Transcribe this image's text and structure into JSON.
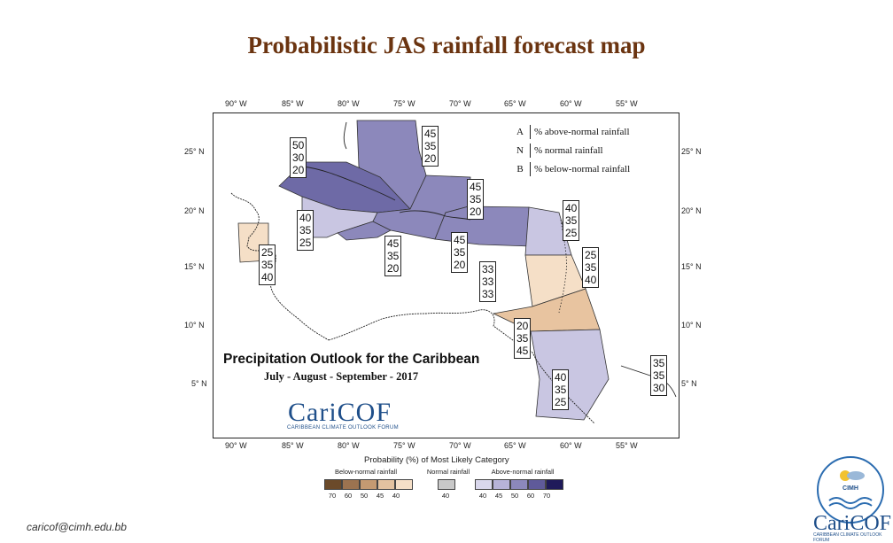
{
  "title": "Probabilistic JAS rainfall forecast map",
  "map": {
    "lon_labels": [
      "90° W",
      "85° W",
      "80° W",
      "75° W",
      "70° W",
      "65° W",
      "60° W",
      "55° W"
    ],
    "lat_labels": [
      "25° N",
      "20° N",
      "15° N",
      "10° N",
      "5° N"
    ],
    "outlook_title": "Precipitation Outlook for the Caribbean",
    "months": "July - August - September - 2017",
    "logo_text": "CariCOF",
    "logo_subtitle": "CARIBBEAN CLIMATE OUTLOOK FORUM",
    "legend": {
      "rows": [
        {
          "key": "A",
          "text": "% above-normal rainfall"
        },
        {
          "key": "N",
          "text": "% normal rainfall"
        },
        {
          "key": "B",
          "text": "% below-normal rainfall"
        }
      ]
    },
    "regions": [
      {
        "name": "Bahamas",
        "A": "45",
        "N": "35",
        "B": "20",
        "color": "#8c88bb"
      },
      {
        "name": "Cuba",
        "A": "50",
        "N": "30",
        "B": "20",
        "color": "#6e6aa6"
      },
      {
        "name": "Cayman / Jamaica west",
        "A": "40",
        "N": "35",
        "B": "25",
        "color": "#c9c6e2"
      },
      {
        "name": "Jamaica",
        "A": "45",
        "N": "35",
        "B": "20",
        "color": "#8c88bb"
      },
      {
        "name": "Hispaniola",
        "A": "45",
        "N": "35",
        "B": "20",
        "color": "#8c88bb"
      },
      {
        "name": "Turks and Caicos",
        "A": "45",
        "N": "35",
        "B": "20",
        "color": "#8c88bb"
      },
      {
        "name": "Northern Leewards",
        "A": "40",
        "N": "35",
        "B": "25",
        "color": "#c9c6e2"
      },
      {
        "name": "Windwards",
        "A": "25",
        "N": "35",
        "B": "40",
        "color": "#f5dfc7"
      },
      {
        "name": "Belize",
        "A": "25",
        "N": "35",
        "B": "40",
        "color": "#f5dfc7"
      },
      {
        "name": "Central Caribbean",
        "A": "33",
        "N": "33",
        "B": "33",
        "color": "#ffffff"
      },
      {
        "name": "Trinidad / Venezuela coast",
        "A": "20",
        "N": "35",
        "B": "45",
        "color": "#e8c4a0"
      },
      {
        "name": "Guyana",
        "A": "40",
        "N": "35",
        "B": "25",
        "color": "#c9c6e2"
      },
      {
        "name": "French Guiana",
        "A": "35",
        "N": "35",
        "B": "30",
        "color": "#ffffff"
      }
    ]
  },
  "scale": {
    "title": "Probability (%) of Most Likely Category",
    "below_label": "Below-normal rainfall",
    "normal_label": "Normal rainfall",
    "above_label": "Above-normal rainfall",
    "below_colors": [
      "#6b4a2a",
      "#9c7350",
      "#c49a72",
      "#e3c2a0",
      "#f5dfc7"
    ],
    "below_values": [
      "70",
      "60",
      "50",
      "45",
      "40"
    ],
    "normal_colors": [
      "#c8c8c8"
    ],
    "normal_values": [
      "40"
    ],
    "above_colors": [
      "#d9d7ec",
      "#b7b3d8",
      "#8c88bb",
      "#5f5a9a",
      "#1f1a5a"
    ],
    "above_values": [
      "40",
      "45",
      "50",
      "60",
      "70"
    ]
  },
  "footer": {
    "email": "caricof@cimh.edu.bb",
    "cimh_label": "CIMH",
    "logo_text": "CariCOF",
    "logo_subtitle": "CARIBBEAN CLIMATE OUTLOOK FORUM"
  }
}
